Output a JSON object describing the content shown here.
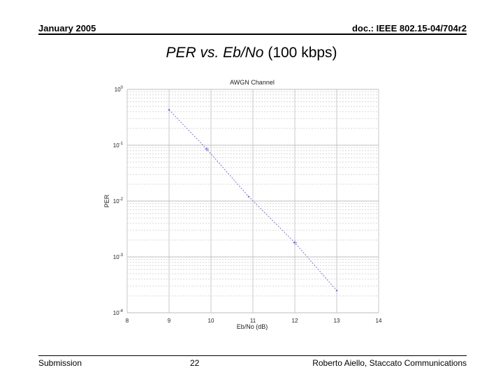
{
  "header": {
    "left": "January 2005",
    "right": "doc.: IEEE 802.15-04/704r2"
  },
  "slide_title": {
    "italic_part": "PER vs. Eb/No",
    "plain_part": " (100 kbps)"
  },
  "footer": {
    "left": "Submission",
    "page": "22",
    "right": "Roberto Aiello, Staccato Communications"
  },
  "chart_data": {
    "type": "line",
    "title": "AWGN Channel",
    "xlabel": "Eb/No (dB)",
    "ylabel": "PER",
    "x_ticks": [
      "8",
      "9",
      "10",
      "11",
      "12",
      "13",
      "14"
    ],
    "y_tick_exponents": [
      "0",
      "-1",
      "-2",
      "-3",
      "-4"
    ],
    "xlim": [
      8,
      14
    ],
    "ylim": [
      0.0001,
      1
    ],
    "yscale": "log",
    "grid": true,
    "series": [
      {
        "color": "#7a7ad8",
        "x": [
          9,
          9.9,
          10.9,
          12,
          13
        ],
        "y": [
          0.43,
          0.085,
          0.012,
          0.0018,
          0.00025
        ]
      }
    ]
  }
}
